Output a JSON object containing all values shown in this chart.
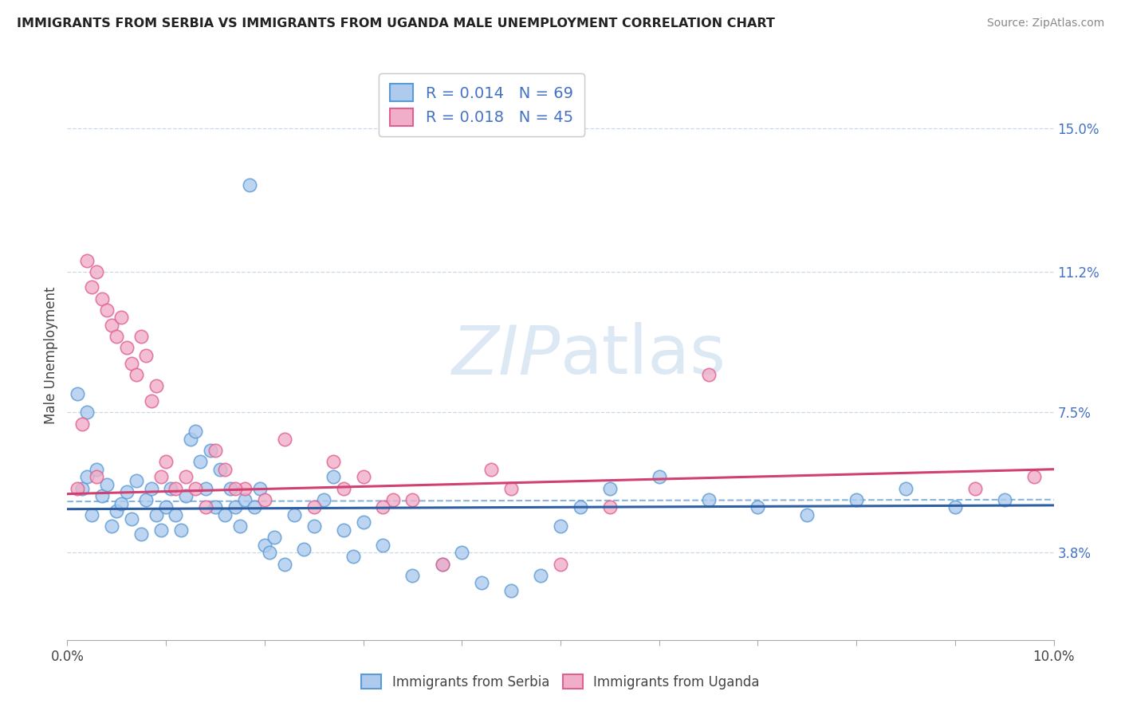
{
  "title": "IMMIGRANTS FROM SERBIA VS IMMIGRANTS FROM UGANDA MALE UNEMPLOYMENT CORRELATION CHART",
  "source": "Source: ZipAtlas.com",
  "ylabel": "Male Unemployment",
  "x_min": 0.0,
  "x_max": 10.0,
  "y_min": 1.5,
  "y_max": 16.5,
  "yticks": [
    3.8,
    7.5,
    11.2,
    15.0
  ],
  "xtick_labels_shown": [
    "0.0%",
    "10.0%"
  ],
  "xtick_positions_shown": [
    0.0,
    10.0
  ],
  "serbia_R": 0.014,
  "serbia_N": 69,
  "uganda_R": 0.018,
  "uganda_N": 45,
  "serbia_color": "#aecbee",
  "uganda_color": "#f0aec8",
  "serbia_edge_color": "#5b9bd5",
  "uganda_edge_color": "#e06090",
  "serbia_line_color": "#2e5fa3",
  "uganda_line_color": "#d04070",
  "dashed_line_color": "#8ab4d8",
  "grid_line_color": "#c8d8e8",
  "background_color": "#ffffff",
  "watermark_color": "#dce8f4",
  "serbia_trend_x0": 0.0,
  "serbia_trend_y0": 4.95,
  "serbia_trend_x1": 10.0,
  "serbia_trend_y1": 5.05,
  "uganda_trend_x0": 0.0,
  "uganda_trend_y0": 5.35,
  "uganda_trend_x1": 10.0,
  "uganda_trend_y1": 6.0,
  "dash_y0": 5.15,
  "dash_y1": 5.2,
  "serbia_x": [
    0.15,
    0.2,
    0.25,
    0.3,
    0.35,
    0.4,
    0.45,
    0.5,
    0.55,
    0.6,
    0.65,
    0.7,
    0.75,
    0.8,
    0.85,
    0.9,
    0.95,
    1.0,
    1.05,
    1.1,
    1.15,
    1.2,
    1.25,
    1.3,
    1.35,
    1.4,
    1.45,
    1.5,
    1.55,
    1.6,
    1.65,
    1.7,
    1.75,
    1.8,
    1.85,
    1.9,
    1.95,
    2.0,
    2.05,
    2.1,
    2.2,
    2.3,
    2.4,
    2.5,
    2.6,
    2.7,
    2.8,
    2.9,
    3.0,
    3.2,
    3.5,
    3.8,
    4.0,
    4.2,
    4.5,
    4.8,
    5.0,
    5.2,
    5.5,
    6.0,
    6.5,
    7.0,
    7.5,
    8.0,
    8.5,
    9.0,
    9.5,
    0.1,
    0.2
  ],
  "serbia_y": [
    5.5,
    5.8,
    4.8,
    6.0,
    5.3,
    5.6,
    4.5,
    4.9,
    5.1,
    5.4,
    4.7,
    5.7,
    4.3,
    5.2,
    5.5,
    4.8,
    4.4,
    5.0,
    5.5,
    4.8,
    4.4,
    5.3,
    6.8,
    7.0,
    6.2,
    5.5,
    6.5,
    5.0,
    6.0,
    4.8,
    5.5,
    5.0,
    4.5,
    5.2,
    13.5,
    5.0,
    5.5,
    4.0,
    3.8,
    4.2,
    3.5,
    4.8,
    3.9,
    4.5,
    5.2,
    5.8,
    4.4,
    3.7,
    4.6,
    4.0,
    3.2,
    3.5,
    3.8,
    3.0,
    2.8,
    3.2,
    4.5,
    5.0,
    5.5,
    5.8,
    5.2,
    5.0,
    4.8,
    5.2,
    5.5,
    5.0,
    5.2,
    8.0,
    7.5
  ],
  "uganda_x": [
    0.1,
    0.2,
    0.25,
    0.3,
    0.35,
    0.4,
    0.45,
    0.5,
    0.55,
    0.6,
    0.65,
    0.7,
    0.75,
    0.8,
    0.85,
    0.9,
    0.95,
    1.0,
    1.1,
    1.2,
    1.3,
    1.4,
    1.5,
    1.6,
    1.8,
    2.0,
    2.2,
    2.5,
    2.8,
    3.0,
    3.3,
    3.8,
    4.3,
    5.0,
    5.5,
    6.5,
    9.2,
    9.8,
    3.5,
    4.5,
    2.7,
    3.2,
    1.7,
    0.15,
    0.3
  ],
  "uganda_y": [
    5.5,
    11.5,
    10.8,
    11.2,
    10.5,
    10.2,
    9.8,
    9.5,
    10.0,
    9.2,
    8.8,
    8.5,
    9.5,
    9.0,
    7.8,
    8.2,
    5.8,
    6.2,
    5.5,
    5.8,
    5.5,
    5.0,
    6.5,
    6.0,
    5.5,
    5.2,
    6.8,
    5.0,
    5.5,
    5.8,
    5.2,
    3.5,
    6.0,
    3.5,
    5.0,
    8.5,
    5.5,
    5.8,
    5.2,
    5.5,
    6.2,
    5.0,
    5.5,
    7.2,
    5.8
  ]
}
